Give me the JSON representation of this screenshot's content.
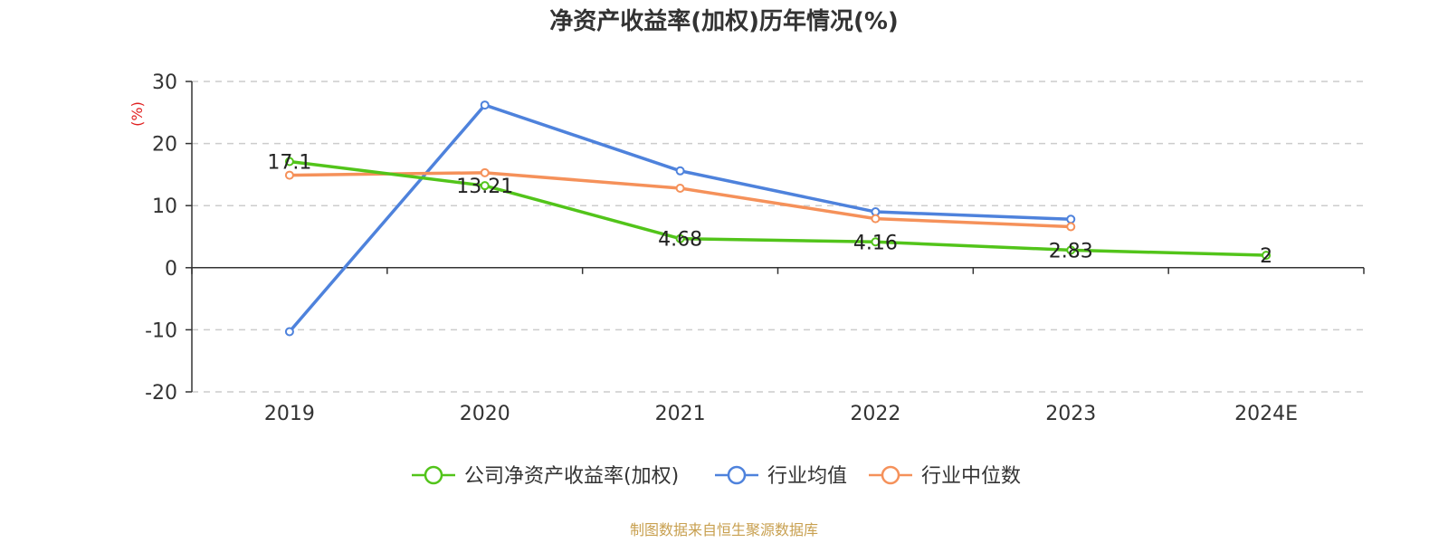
{
  "chart_data": {
    "type": "line",
    "title": "净资产收益率(加权)历年情况(%)",
    "ylabel": "(%)",
    "ylabel_color": "#e02020",
    "categories": [
      "2019",
      "2020",
      "2021",
      "2022",
      "2023",
      "2024E"
    ],
    "ylim": [
      -20,
      30
    ],
    "yticks": [
      30,
      20,
      10,
      0,
      -10,
      -20
    ],
    "grid": true,
    "legend_position": "bottom",
    "series": [
      {
        "name": "公司净资产收益率(加权)",
        "color": "#52c41a",
        "values": [
          17.1,
          13.21,
          4.68,
          4.16,
          2.83,
          2
        ],
        "labels": [
          "17.1",
          "13.21",
          "4.68",
          "4.16",
          "2.83",
          "2"
        ]
      },
      {
        "name": "行业均值",
        "color": "#4e82dc",
        "values": [
          -10.3,
          26.2,
          15.6,
          9.0,
          7.8,
          null
        ]
      },
      {
        "name": "行业中位数",
        "color": "#f5915a",
        "values": [
          14.9,
          15.3,
          12.8,
          7.9,
          6.6,
          null
        ]
      }
    ],
    "source": "制图数据来自恒生聚源数据库",
    "source_color": "#c8a050"
  }
}
